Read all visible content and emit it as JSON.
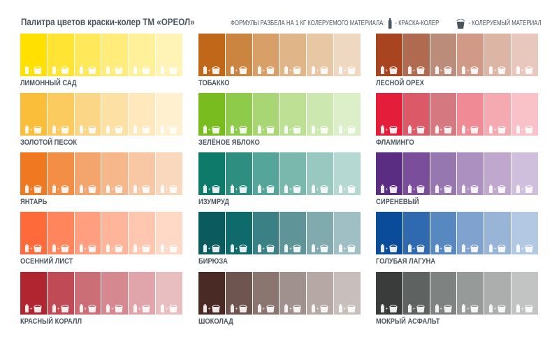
{
  "title": "Палитра цветов краски-колер ТМ «ОРЕОЛ»",
  "legend": {
    "formula": "ФОРМУЛЫ РАЗБЕЛА НА 1 КГ КОЛЕРУЕМОГО МАТЕРИАЛА:",
    "colorant": "- КРАСКА-КОЛЕР",
    "material": "- КОЛЕРУЕМЫЙ МАТЕРИАЛ",
    "colorant_icon": "bottle-icon",
    "material_icon": "bucket-icon"
  },
  "palettes": [
    {
      "name": "ЛИМОННЫЙ САД",
      "colors": [
        "#FFE000",
        "#FFE433",
        "#FFE85A",
        "#FFEC7A",
        "#FFF09A",
        "#FFF4B5"
      ]
    },
    {
      "name": "ТОБАККО",
      "colors": [
        "#C0671A",
        "#CC8540",
        "#D8A068",
        "#E0B588",
        "#E8C7A5",
        "#EED8C2"
      ]
    },
    {
      "name": "ЛЕСНОЙ ОРЕХ",
      "colors": [
        "#A8441F",
        "#B06A50",
        "#BC8C7A",
        "#D19A88",
        "#DDB5A5",
        "#E8C8BC"
      ]
    },
    {
      "name": "ЗОЛОТОЙ ПЕСОК",
      "colors": [
        "#FBBE3A",
        "#FBCB5F",
        "#FCD687",
        "#FDE0A3",
        "#FEE8BC",
        "#FFF0D0"
      ]
    },
    {
      "name": "ЗЕЛЁНОЕ ЯБЛОКО",
      "colors": [
        "#78BC20",
        "#8FCB4A",
        "#A8D675",
        "#BDE095",
        "#CDE7B0",
        "#DCEFC8"
      ]
    },
    {
      "name": "ФЛАМИНГО",
      "colors": [
        "#E41E3A",
        "#DC5A68",
        "#D67880",
        "#F08A95",
        "#F5A9B0",
        "#F9C2C8"
      ]
    },
    {
      "name": "ЯНТАРЬ",
      "colors": [
        "#F07820",
        "#F28E46",
        "#F4A56D",
        "#F6B78B",
        "#F8C8A5",
        "#FAD8BE"
      ]
    },
    {
      "name": "ИЗУМРУД",
      "colors": [
        "#0E7A6A",
        "#2E8F80",
        "#56A59A",
        "#7AB8AE",
        "#98C8C0",
        "#B5D8D3"
      ]
    },
    {
      "name": "СИРЕНЕВЫЙ",
      "colors": [
        "#5A2D82",
        "#7A4E9A",
        "#9677B0",
        "#AC90C0",
        "#BFA7CE",
        "#CFBEDC"
      ]
    },
    {
      "name": "ОСЕННИЙ ЛИСТ",
      "colors": [
        "#FF6A3A",
        "#FF855C",
        "#FF9F80",
        "#FFB599",
        "#FFC7B0",
        "#FFD8C6"
      ]
    },
    {
      "name": "БИРЮЗА",
      "colors": [
        "#0A5A5E",
        "#0F6A6C",
        "#3A8085",
        "#5F9499",
        "#80AAAE",
        "#A0BFC4"
      ]
    },
    {
      "name": "ГОЛУБАЯ ЛАГУНА",
      "colors": [
        "#0A4C9A",
        "#2F6AB0",
        "#5788C0",
        "#7FA2CE",
        "#98B5D8",
        "#B3C8E2"
      ]
    },
    {
      "name": "КРАСНЫЙ КОРАЛЛ",
      "colors": [
        "#B02530",
        "#C04A55",
        "#CC6E76",
        "#D68890",
        "#E0A5AA",
        "#E8BEC0"
      ]
    },
    {
      "name": "ШОКОЛАД",
      "colors": [
        "#4A2A25",
        "#6E5550",
        "#8A7570",
        "#A0918E",
        "#B5A8A5",
        "#C8BEBC"
      ]
    },
    {
      "name": "МОКРЫЙ АСФАЛЬТ",
      "colors": [
        "#3A3C3C",
        "#5E6260",
        "#7E8280",
        "#969A98",
        "#ACAEAD",
        "#C2C4C3"
      ]
    }
  ]
}
